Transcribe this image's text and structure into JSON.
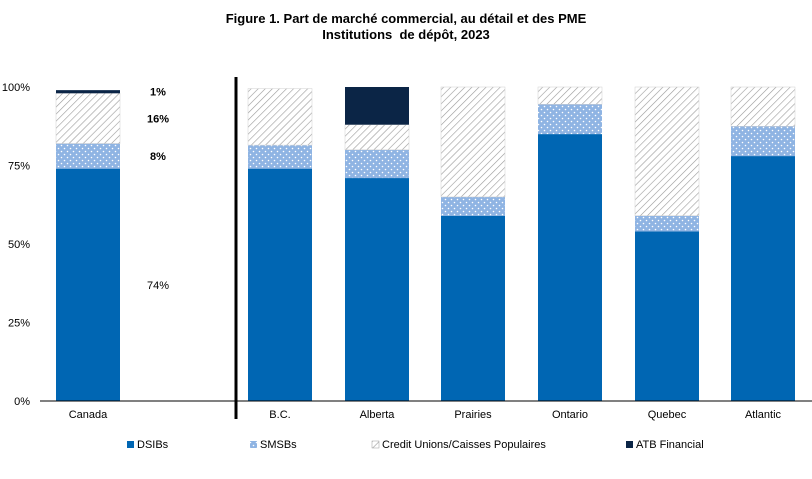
{
  "chart_data": {
    "type": "bar",
    "stacked": true,
    "title": "Figure 1. Part de marché commercial, au détail et des PME",
    "subtitle": "Institutions  de dépôt, 2023",
    "xlabel": "",
    "ylabel": "",
    "ylim": [
      0,
      100
    ],
    "yticks": [
      "0%",
      "25%",
      "50%",
      "75%",
      "100%"
    ],
    "categories": [
      "Canada",
      "B.C.",
      "Alberta",
      "Prairies",
      "Ontario",
      "Quebec",
      "Atlantic"
    ],
    "series": [
      {
        "name": "DSIBs",
        "values": [
          74,
          74,
          71,
          59,
          85,
          54,
          78
        ],
        "color": "#0066b3",
        "pattern": "solid"
      },
      {
        "name": "SMSBs",
        "values": [
          8,
          7.5,
          9,
          6,
          9.5,
          5,
          9.5
        ],
        "color": "#8fb4e3",
        "pattern": "dots"
      },
      {
        "name": "Credit Unions/Caisses Populaires",
        "values": [
          16,
          18,
          8,
          35,
          5.5,
          41,
          12.5
        ],
        "color": "#9a9a9a",
        "pattern": "hatch"
      },
      {
        "name": "ATB Financial",
        "values": [
          1,
          0,
          12,
          0,
          0,
          0,
          0
        ],
        "color": "#0b2546",
        "pattern": "solid"
      }
    ],
    "data_labels": [
      {
        "category": "Canada",
        "series": "ATB Financial",
        "text": "1%",
        "bold": true
      },
      {
        "category": "Canada",
        "series": "Credit Unions/Caisses Populaires",
        "text": "16%",
        "bold": true
      },
      {
        "category": "Canada",
        "series": "SMSBs",
        "text": "8%",
        "bold": true
      },
      {
        "category": "Canada",
        "series": "DSIBs",
        "text": "74%",
        "bold": false
      }
    ],
    "legend_position": "bottom",
    "grid": false
  }
}
